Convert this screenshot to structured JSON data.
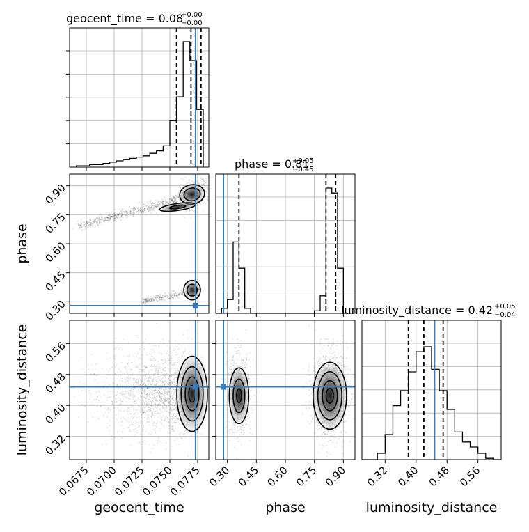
{
  "chart_data": {
    "type": "corner",
    "parameters": [
      "geocent_time",
      "phase",
      "luminosity_distance"
    ],
    "truths": {
      "geocent_time": 0.0773,
      "phase": 0.28,
      "luminosity_distance": 0.448
    },
    "colors": {
      "truth": "#3a7ab6",
      "hist": "#000000",
      "grid": "#b0b0b0",
      "quantile": "#000000"
    },
    "grid": true,
    "diagonal_titles": [
      {
        "param": "geocent_time",
        "text": "geocent_time = 0.08",
        "sup": "+0.00",
        "sub": "−0.00"
      },
      {
        "param": "phase",
        "text": "phase = 0.81",
        "sup": "+0.05",
        "sub": "−0.45"
      },
      {
        "param": "luminosity_distance",
        "text": "luminosity_distance = 0.42",
        "sup": "+0.05",
        "sub": "−0.04"
      }
    ],
    "axes": {
      "geocent_time": {
        "label": "geocent_time",
        "range": [
          0.066,
          0.0785
        ],
        "ticks": [
          0.0675,
          0.07,
          0.0725,
          0.075,
          0.0775
        ],
        "tick_labels": [
          "0.0675",
          "0.0700",
          "0.0725",
          "0.0750",
          "0.0775"
        ]
      },
      "phase": {
        "label": "phase",
        "range": [
          0.24,
          0.96
        ],
        "ticks": [
          0.3,
          0.45,
          0.6,
          0.75,
          0.9
        ],
        "tick_labels": [
          "0.30",
          "0.45",
          "0.60",
          "0.75",
          "0.90"
        ]
      },
      "luminosity_distance": {
        "label": "luminosity_distance",
        "range": [
          0.26,
          0.62
        ],
        "ticks": [
          0.32,
          0.4,
          0.48,
          0.56
        ],
        "tick_labels": [
          "0.32",
          "0.40",
          "0.48",
          "0.56"
        ]
      }
    },
    "histograms": {
      "geocent_time": {
        "bin_edges": [
          0.0666,
          0.0672,
          0.0678,
          0.0684,
          0.069,
          0.0696,
          0.0702,
          0.0708,
          0.0714,
          0.072,
          0.0726,
          0.0732,
          0.0738,
          0.0744,
          0.075,
          0.0756,
          0.0762,
          0.0768,
          0.0774,
          0.078
        ],
        "counts": [
          0.01,
          0.01,
          0.02,
          0.02,
          0.03,
          0.04,
          0.05,
          0.06,
          0.07,
          0.08,
          0.09,
          0.11,
          0.13,
          0.17,
          0.37,
          0.56,
          1.0,
          0.85,
          0.46
        ],
        "quantiles": [
          0.0756,
          0.0769,
          0.0778
        ]
      },
      "phase": {
        "bin_edges": [
          0.24,
          0.27,
          0.3,
          0.33,
          0.36,
          0.39,
          0.42,
          0.45,
          0.48,
          0.51,
          0.54,
          0.57,
          0.6,
          0.63,
          0.66,
          0.69,
          0.72,
          0.75,
          0.78,
          0.81,
          0.84,
          0.87,
          0.9,
          0.93
        ],
        "counts": [
          0.0,
          0.04,
          0.11,
          0.57,
          0.36,
          0.04,
          0.0,
          0.0,
          0.0,
          0.0,
          0.0,
          0.0,
          0.0,
          0.0,
          0.0,
          0.0,
          0.0,
          0.02,
          0.14,
          1.0,
          0.96,
          0.36,
          0.0
        ],
        "quantiles": [
          0.36,
          0.81,
          0.86
        ]
      },
      "luminosity_distance": {
        "bin_edges": [
          0.26,
          0.28,
          0.3,
          0.32,
          0.34,
          0.36,
          0.38,
          0.4,
          0.42,
          0.44,
          0.46,
          0.48,
          0.5,
          0.52,
          0.54,
          0.56,
          0.58,
          0.6,
          0.62
        ],
        "counts": [
          0.0,
          0.0,
          0.05,
          0.2,
          0.43,
          0.55,
          0.7,
          0.86,
          0.9,
          0.72,
          0.55,
          0.4,
          0.22,
          0.14,
          0.1,
          0.05,
          0.01,
          0.0
        ],
        "quantiles": [
          0.38,
          0.42,
          0.47
        ]
      }
    },
    "panel_2d": {
      "phase_vs_geocent_time": {
        "x": "geocent_time",
        "y": "phase"
      },
      "luminosity_distance_vs_geocent_time": {
        "x": "geocent_time",
        "y": "luminosity_distance"
      },
      "luminosity_distance_vs_phase": {
        "x": "phase",
        "y": "luminosity_distance"
      }
    }
  }
}
